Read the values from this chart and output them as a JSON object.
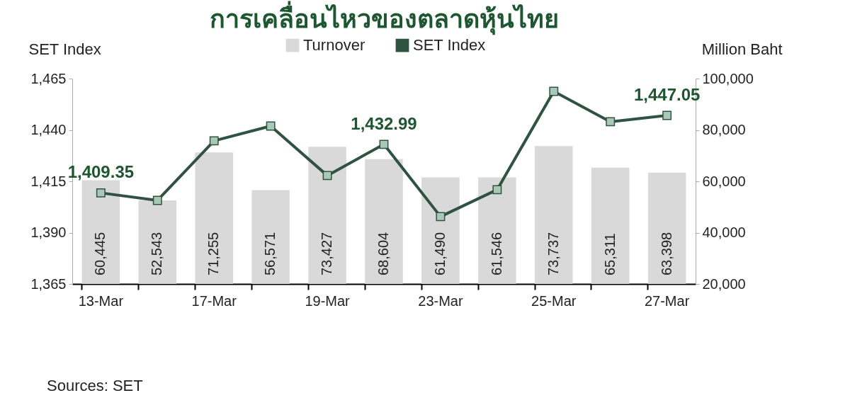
{
  "chart_data": {
    "type": "bar",
    "title": "การเคลื่อนไหวของตลาดหุ้นไทย",
    "ylabel": "SET Index",
    "y2label": "Million Baht",
    "annotations": [
      "Sources: SET"
    ],
    "categories": [
      "13-Mar",
      null,
      "17-Mar",
      null,
      "19-Mar",
      null,
      "23-Mar",
      null,
      "25-Mar",
      null,
      "27-Mar"
    ],
    "series": [
      {
        "name": "Turnover",
        "axis": "y2",
        "color": "#d9d9d9",
        "values": [
          60445,
          52543,
          71255,
          56571,
          73427,
          68604,
          61490,
          61546,
          73737,
          65311,
          63398
        ],
        "value_labels": [
          "60,445",
          "52,543",
          "71,255",
          "56,571",
          "73,427",
          "68,604",
          "61,490",
          "61,546",
          "73,737",
          "65,311",
          "63,398"
        ]
      },
      {
        "name": "SET Index",
        "type": "line",
        "color": "#2f5243",
        "values": [
          1409.35,
          1405.7,
          1434.7,
          1441.9,
          1417.8,
          1432.99,
          1397.8,
          1410.9,
          1458.8,
          1444.0,
          1447.05
        ],
        "value_labels": [
          "1,409.35",
          null,
          null,
          null,
          null,
          "1,432.99",
          null,
          null,
          null,
          null,
          "1,447.05"
        ]
      }
    ],
    "ylim": [
      1365,
      1465
    ],
    "yticks": [
      {
        "value": 1365,
        "label": "1,365"
      },
      {
        "value": 1390,
        "label": "1,390"
      },
      {
        "value": 1415,
        "label": "1,415"
      },
      {
        "value": 1440,
        "label": "1,440"
      },
      {
        "value": 1465,
        "label": "1,465"
      }
    ],
    "y2lim": [
      20000,
      100000
    ],
    "y2ticks": [
      {
        "value": 20000,
        "label": "20,000"
      },
      {
        "value": 40000,
        "label": "40,000"
      },
      {
        "value": 60000,
        "label": "60,000"
      },
      {
        "value": 80000,
        "label": "80,000"
      },
      {
        "value": 100000,
        "label": "100,000"
      }
    ],
    "marker": "square",
    "legend": "top"
  }
}
